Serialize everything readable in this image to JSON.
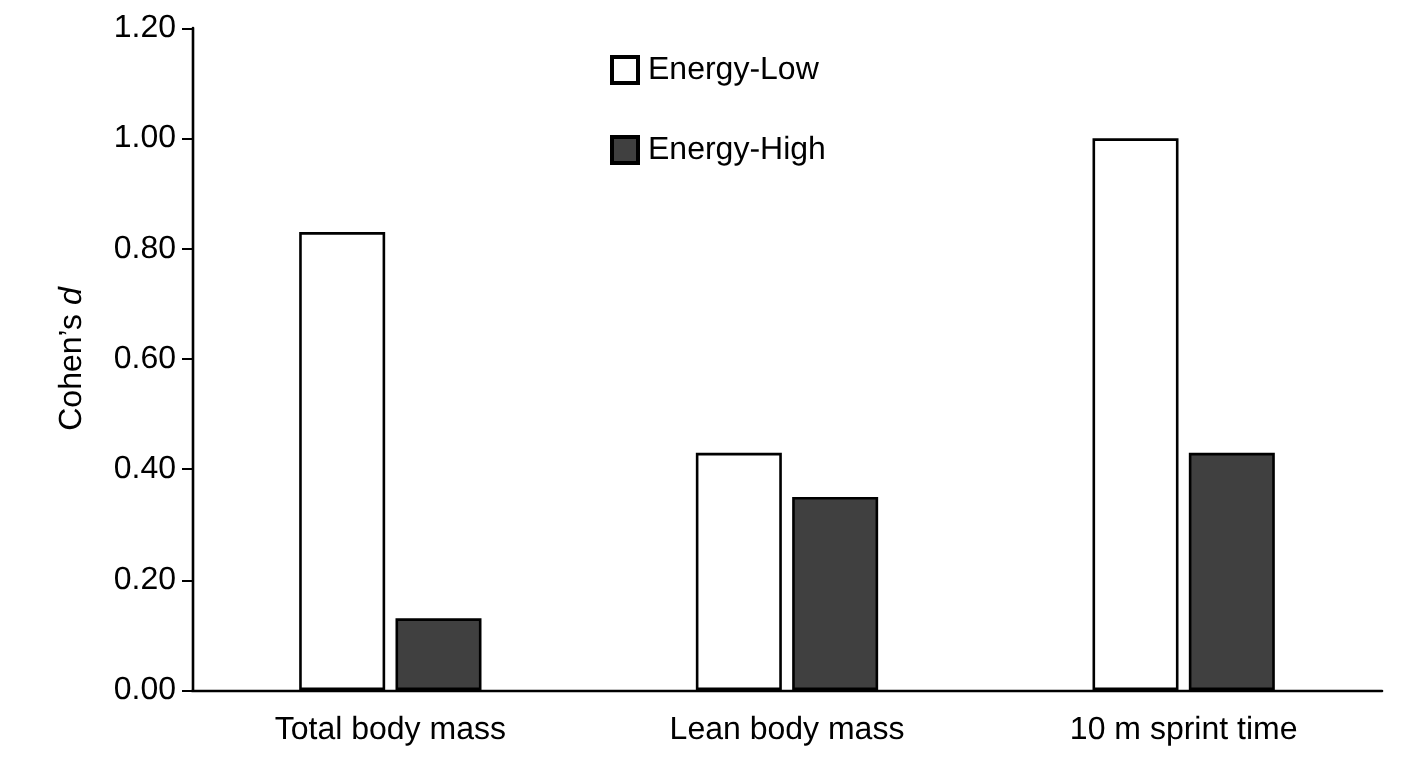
{
  "chart_data": {
    "type": "bar",
    "ylabel": "Cohen’s d",
    "categories": [
      "Total body mass",
      "Lean body mass",
      "10 m sprint time"
    ],
    "series": [
      {
        "name": "Energy-Low",
        "color": "#ffffff",
        "values": [
          0.83,
          0.43,
          1.0
        ]
      },
      {
        "name": "Energy-High",
        "color": "#404040",
        "values": [
          0.13,
          0.35,
          0.43
        ]
      }
    ],
    "ylim": [
      0,
      1.2
    ],
    "yticks": [
      {
        "value": 0,
        "label": "0.00"
      },
      {
        "value": 0.2,
        "label": "0.20"
      },
      {
        "value": 0.4,
        "label": "0.40"
      },
      {
        "value": 0.6,
        "label": "0.60"
      },
      {
        "value": 0.8,
        "label": "0.80"
      },
      {
        "value": 1,
        "label": "1.00"
      },
      {
        "value": 1.2,
        "label": "1.20"
      }
    ],
    "grid": false,
    "legend": "top"
  }
}
